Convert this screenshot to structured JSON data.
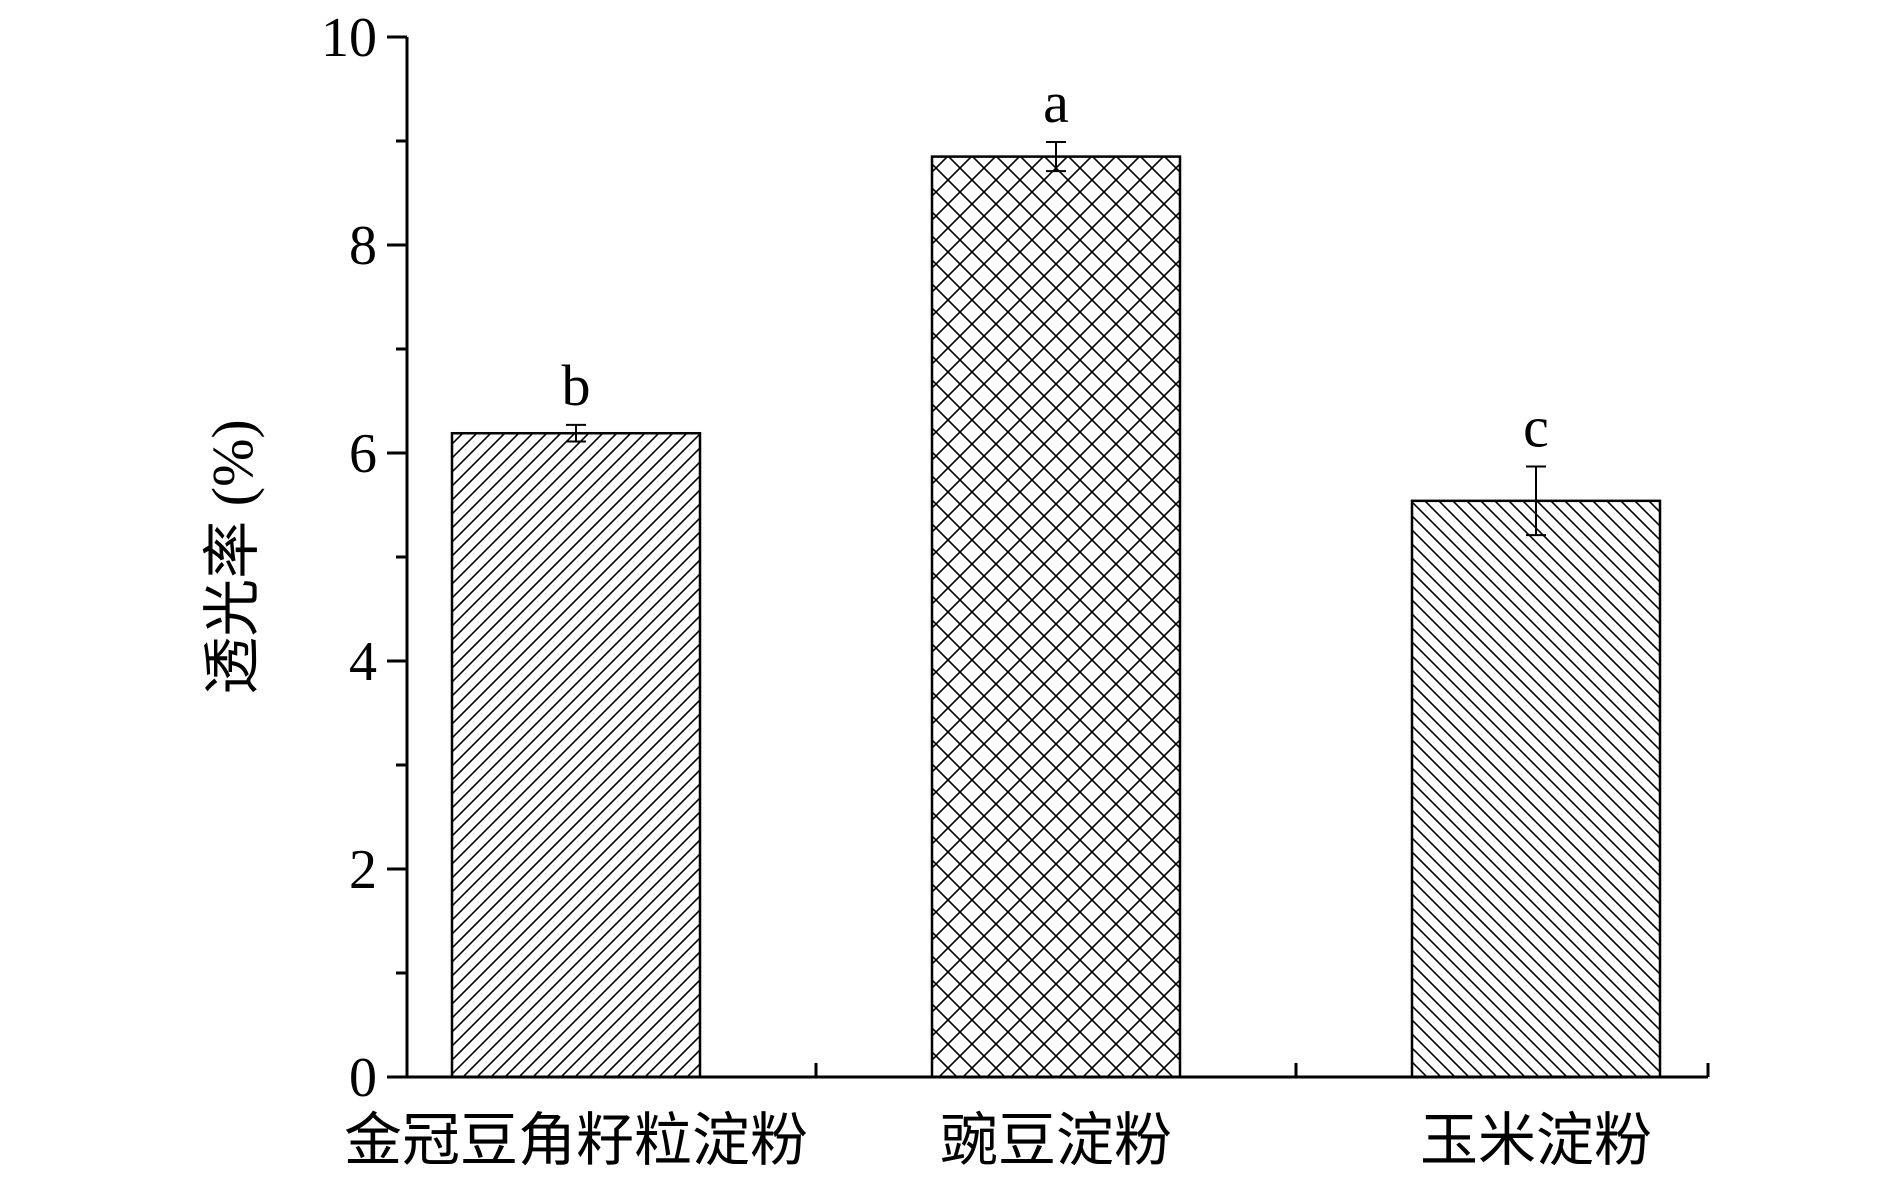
{
  "chart_data": {
    "type": "bar",
    "title": "",
    "xlabel": "",
    "ylabel": "透光率 (%)",
    "ylim": [
      0,
      10
    ],
    "yticks": [
      0,
      2,
      4,
      6,
      8,
      10
    ],
    "grid": false,
    "categories": [
      "金冠豆角籽粒淀粉",
      "豌豆淀粉",
      "玉米淀粉"
    ],
    "values": [
      6.19,
      8.85,
      5.54
    ],
    "errors": [
      0.08,
      0.14,
      0.33
    ],
    "annotations": [
      "b",
      "a",
      "c"
    ],
    "patterns": [
      "diagonal-right",
      "crosshatch",
      "diagonal-left"
    ],
    "colors": {
      "bar_fill": "#ffffff",
      "bar_stroke": "#000000",
      "hatch": "#000000"
    }
  }
}
